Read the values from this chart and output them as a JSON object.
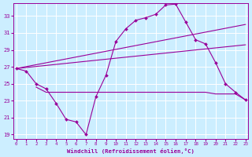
{
  "bg_color": "#cceeff",
  "line_color": "#990099",
  "grid_color": "#ffffff",
  "xlabel": "Windchill (Refroidissement éolien,°C)",
  "yticks": [
    19,
    21,
    23,
    25,
    27,
    29,
    31,
    33
  ],
  "xlim": [
    -0.3,
    23.3
  ],
  "ylim": [
    18.5,
    34.5
  ],
  "xticks": [
    0,
    1,
    2,
    3,
    4,
    5,
    6,
    7,
    8,
    9,
    10,
    11,
    12,
    13,
    14,
    15,
    16,
    17,
    18,
    19,
    20,
    21,
    22,
    23
  ],
  "series1_x": [
    0,
    1,
    2,
    3,
    4,
    5,
    6,
    7,
    8,
    9,
    10,
    11,
    12,
    13,
    14,
    15,
    16,
    17,
    18,
    19,
    20,
    21,
    22,
    23
  ],
  "series1_y": [
    26.8,
    26.5,
    25.0,
    24.4,
    22.7,
    20.8,
    20.5,
    19.0,
    23.5,
    26.0,
    30.0,
    31.5,
    32.5,
    32.8,
    33.2,
    34.3,
    34.4,
    32.3,
    30.2,
    29.7,
    27.5,
    25.0,
    24.0,
    23.1
  ],
  "series2_x": [
    0,
    23
  ],
  "series2_y": [
    26.8,
    32.0
  ],
  "series3_x": [
    0,
    23
  ],
  "series3_y": [
    26.8,
    29.6
  ],
  "series4_x": [
    2,
    3,
    4,
    5,
    6,
    7,
    8,
    9,
    10,
    11,
    12,
    13,
    14,
    15,
    16,
    17,
    18,
    19,
    20,
    21,
    22,
    23
  ],
  "series4_y": [
    24.6,
    24.0,
    24.0,
    24.0,
    24.0,
    24.0,
    24.0,
    24.0,
    24.0,
    24.0,
    24.0,
    24.0,
    24.0,
    24.0,
    24.0,
    24.0,
    24.0,
    24.0,
    23.8,
    23.8,
    23.8,
    23.1
  ]
}
